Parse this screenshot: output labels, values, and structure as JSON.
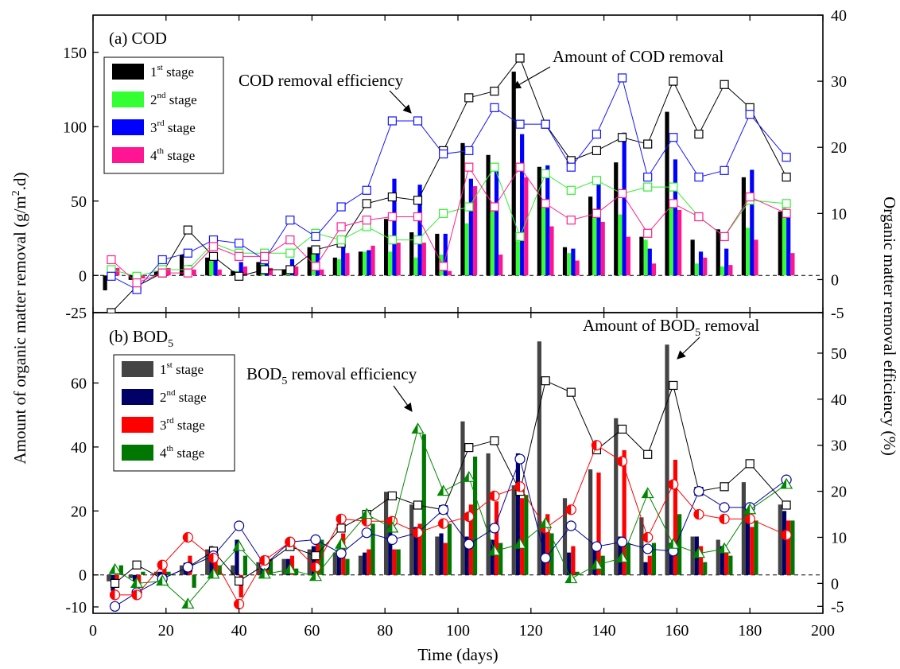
{
  "chart_data": [
    {
      "panel": "(a) COD",
      "type": "bar+line",
      "xlabel": "Time (days)",
      "ylabel": "Amount of organic matter removal (g/m2.d)",
      "y2label": "Organic matter removal efficiency (%)",
      "xlim": [
        0,
        200
      ],
      "ylim": [
        -25,
        175
      ],
      "y2lim": [
        -5,
        40
      ],
      "xticks": [
        "0",
        "20",
        "40",
        "60",
        "80",
        "100",
        "120",
        "140",
        "160",
        "180",
        "200"
      ],
      "yticks": [
        "-25",
        "0",
        "50",
        "100",
        "150"
      ],
      "y2ticks": [
        "-5",
        "0",
        "10",
        "20",
        "30",
        "40"
      ],
      "legend": {
        "position": "top-left",
        "entries": [
          {
            "base": "1",
            "sup": "st",
            "rest": " stage"
          },
          {
            "base": "2",
            "sup": "nd",
            "rest": " stage"
          },
          {
            "base": "3",
            "sup": "rd",
            "rest": " stage"
          },
          {
            "base": "4",
            "sup": "th",
            "rest": " stage"
          }
        ]
      },
      "annotations": [
        {
          "text": "COD removal efficiency"
        },
        {
          "text": "Amount of COD removal"
        }
      ],
      "days": [
        5,
        12,
        19,
        26,
        33,
        40,
        47,
        54,
        61,
        68,
        75,
        82,
        89,
        96,
        103,
        110,
        117,
        124,
        131,
        138,
        145,
        152,
        159,
        166,
        173,
        180,
        190
      ],
      "bar_series": [
        {
          "name": "1st stage",
          "color": "#000000",
          "values": [
            -10,
            -3,
            3,
            14,
            12,
            3,
            9,
            4,
            19,
            12,
            16,
            38,
            29,
            28,
            89,
            81,
            137,
            73,
            19,
            53,
            76,
            26,
            110,
            24,
            31,
            66,
            43
          ]
        },
        {
          "name": "2nd stage",
          "color": "#33ff33",
          "values": [
            1,
            -1,
            4,
            4,
            11,
            3,
            9,
            3,
            20,
            11,
            16,
            16,
            12,
            14,
            35,
            48,
            23,
            48,
            15,
            45,
            41,
            24,
            51,
            8,
            6,
            32,
            51
          ]
        },
        {
          "name": "3rd stage",
          "color": "#0000ff",
          "values": [
            6,
            -5,
            6,
            7,
            13,
            9,
            8,
            11,
            16,
            19,
            17,
            65,
            61,
            28,
            65,
            74,
            95,
            74,
            18,
            66,
            96,
            18,
            78,
            16,
            18,
            71,
            40
          ]
        },
        {
          "name": "4th stage",
          "color": "#ff1493",
          "values": [
            5,
            -2,
            5,
            4,
            4,
            6,
            5,
            6,
            4,
            15,
            20,
            22,
            22,
            3,
            60,
            14,
            66,
            33,
            10,
            36,
            26,
            8,
            44,
            12,
            7,
            24,
            15
          ]
        }
      ],
      "efficiency_series": [
        {
          "name": "1st stage",
          "color": "#000000",
          "values": [
            -5,
            -1,
            1,
            7.5,
            3.5,
            0.5,
            1.5,
            1.5,
            4.5,
            5.5,
            11.5,
            12.5,
            12,
            19.5,
            27.5,
            28.5,
            33.5,
            23.5,
            18,
            19.5,
            21.5,
            20.5,
            30,
            22,
            29.5,
            26,
            15.5
          ]
        },
        {
          "name": "2nd stage",
          "color": "#33ee33",
          "values": [
            1.5,
            0.5,
            1.5,
            1.5,
            5.5,
            4,
            4,
            4,
            7,
            6,
            8,
            6,
            6,
            10,
            11,
            17,
            6.5,
            16,
            13.5,
            15,
            13,
            14,
            14,
            9.5,
            6.5,
            12,
            11.5
          ]
        },
        {
          "name": "3rd stage",
          "color": "#1515ff",
          "values": [
            0.5,
            -1.5,
            3,
            4,
            6,
            5.5,
            3,
            9,
            6.5,
            11,
            13.5,
            24,
            24,
            19,
            19.5,
            26,
            23.5,
            23.5,
            17,
            22,
            30.5,
            15.5,
            21.5,
            15.5,
            16.5,
            25,
            18.5
          ]
        },
        {
          "name": "4th stage",
          "color": "#ff1f8f",
          "values": [
            3,
            -0.5,
            1,
            1,
            5,
            3.5,
            3.5,
            6,
            2,
            8,
            9,
            9.5,
            9.5,
            2,
            17,
            11,
            17,
            11.5,
            9,
            10,
            13,
            7,
            11.5,
            9.5,
            6.5,
            12.5,
            10
          ]
        }
      ]
    },
    {
      "panel": "(b) BOD5",
      "type": "bar+line",
      "xlabel": "Time (days)",
      "ylim": [
        -12,
        82
      ],
      "y2lim": [
        -6.5,
        58.8
      ],
      "yticks": [
        "-10",
        "0",
        "20",
        "40",
        "60"
      ],
      "y2ticks": [
        "-5",
        "0",
        "10",
        "20",
        "30",
        "40",
        "50"
      ],
      "legend": {
        "position": "top-left",
        "entries": [
          {
            "base": "1",
            "sup": "st",
            "rest": " stage"
          },
          {
            "base": "2",
            "sup": "nd",
            "rest": " stage"
          },
          {
            "base": "3",
            "sup": "rd",
            "rest": " stage"
          },
          {
            "base": "4",
            "sup": "th",
            "rest": " stage"
          }
        ]
      },
      "annotations": [
        {
          "text": "BOD5 removal efficiency"
        },
        {
          "text": "Amount of BOD5 removal"
        }
      ],
      "days": [
        6,
        12,
        19,
        26,
        33,
        40,
        47,
        54,
        61,
        68,
        75,
        82,
        89,
        96,
        103,
        110,
        117,
        124,
        131,
        138,
        145,
        152,
        159,
        166,
        173,
        180,
        190
      ],
      "bar_series": [
        {
          "name": "1st stage",
          "color": "#444444",
          "values": [
            -2,
            -1,
            1,
            3,
            8,
            3,
            4,
            5,
            8,
            7,
            6,
            26,
            22,
            12,
            48,
            38,
            28,
            73,
            24,
            33,
            49,
            18,
            72,
            12,
            11,
            29,
            22
          ]
        },
        {
          "name": "2nd stage",
          "color": "#000066",
          "values": [
            -5,
            -2,
            1,
            2,
            9,
            11,
            4,
            5,
            9,
            6,
            7,
            18,
            15,
            13,
            12,
            11,
            38,
            16,
            7,
            9,
            12,
            4,
            10,
            12,
            9,
            19,
            20
          ]
        },
        {
          "name": "3rd stage",
          "color": "#ff0000",
          "values": [
            -3,
            -3,
            2,
            6,
            7,
            -7,
            6,
            6,
            10,
            13,
            8,
            8,
            16,
            10,
            22,
            23,
            24,
            19,
            9,
            32,
            39,
            6,
            36,
            9,
            7,
            15,
            17
          ]
        },
        {
          "name": "4th stage",
          "color": "#007700",
          "values": [
            3,
            1,
            1,
            -4,
            3,
            6,
            5,
            2,
            11,
            5,
            16,
            8,
            44,
            16,
            37,
            10,
            25,
            13,
            1,
            6,
            10,
            10,
            19,
            4,
            6,
            17,
            17
          ]
        }
      ],
      "efficiency_series": [
        {
          "name": "1st stage",
          "color": "#000000",
          "marker": "square",
          "values": [
            0,
            4,
            1,
            3.5,
            7,
            0.5,
            4,
            8,
            6,
            12,
            15,
            19,
            17,
            16,
            29.5,
            31,
            20,
            44,
            41.5,
            29,
            33.5,
            28,
            43,
            20,
            21,
            26,
            17
          ]
        },
        {
          "name": "2nd stage",
          "color": "#000099",
          "marker": "circle",
          "values": [
            -5,
            -2,
            1,
            3.5,
            6,
            12.5,
            4,
            9,
            9.5,
            6.5,
            11,
            9.5,
            11,
            16,
            8.5,
            12,
            27,
            5.5,
            12.5,
            8,
            9,
            7.5,
            7,
            20,
            16.5,
            16.5,
            22.5
          ]
        },
        {
          "name": "3rd stage",
          "color": "#ff0000",
          "marker": "half-circle",
          "values": [
            -2.5,
            -2.5,
            4,
            10,
            5.5,
            -4.5,
            5,
            9,
            3.5,
            14,
            13.5,
            13.5,
            11,
            13,
            14.5,
            19,
            21,
            12,
            16,
            30,
            26.5,
            10,
            21.5,
            15,
            14,
            14,
            10.5
          ]
        },
        {
          "name": "4th stage",
          "color": "#008800",
          "marker": "triangle",
          "values": [
            3,
            0,
            0.5,
            -4.5,
            2,
            8,
            2,
            3,
            1.5,
            8.5,
            15,
            12,
            33.5,
            20,
            23,
            7,
            8.5,
            13,
            1,
            4,
            5.5,
            19.5,
            8.5,
            6.5,
            7.5,
            16,
            21.5
          ]
        }
      ]
    }
  ]
}
